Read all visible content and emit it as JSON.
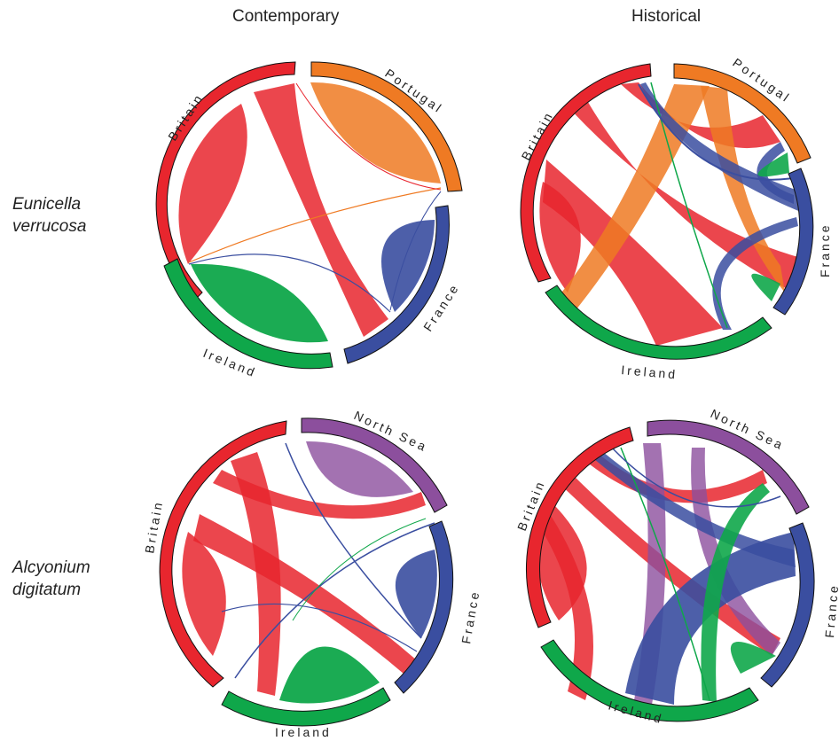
{
  "columns": [
    "Contemporary",
    "Historical"
  ],
  "rows": [
    {
      "species_line1": "Eunicella",
      "species_line2": "verrucosa"
    },
    {
      "species_line1": "Alcyonium",
      "species_line2": "digitatum"
    }
  ],
  "colors": {
    "Britain": "#e8262e",
    "Portugal": "#ef7a23",
    "France": "#3a4ea0",
    "Ireland": "#0fa74a",
    "North Sea": "#8c4f9d"
  },
  "diagrams": [
    {
      "id": "ev-contemporary",
      "segments": [
        {
          "name": "Britain",
          "start": 185,
          "end": 352
        },
        {
          "name": "Portugal",
          "start": 356,
          "end": 72
        },
        {
          "name": "France",
          "start": 80,
          "end": 168
        },
        {
          "name": "Ireland",
          "start": 176,
          "end": 180
        }
      ],
      "labels": [
        "Britain",
        "Portugal",
        "France",
        "Ireland"
      ]
    },
    {
      "id": "ev-historical",
      "segments": [
        {
          "name": "Britain",
          "start": 216,
          "end": 352
        },
        {
          "name": "Portugal",
          "start": 357,
          "end": 56
        },
        {
          "name": "France",
          "start": 62,
          "end": 146
        },
        {
          "name": "Ireland",
          "start": 152,
          "end": 211
        }
      ],
      "labels": [
        "Britain",
        "Portugal",
        "France",
        "Ireland"
      ]
    },
    {
      "id": "ad-contemporary",
      "segments": [
        {
          "name": "Britain",
          "start": 215,
          "end": 356
        },
        {
          "name": "North Sea",
          "start": 2,
          "end": 57
        },
        {
          "name": "France",
          "start": 65,
          "end": 139
        },
        {
          "name": "Ireland",
          "start": 146,
          "end": 209
        }
      ],
      "labels": [
        "Britain",
        "North Sea",
        "France",
        "Ireland"
      ]
    },
    {
      "id": "ad-historical",
      "segments": [
        {
          "name": "Britain",
          "start": 250,
          "end": 352
        },
        {
          "name": "North Sea",
          "start": 358,
          "end": 64
        },
        {
          "name": "France",
          "start": 71,
          "end": 144
        },
        {
          "name": "Ireland",
          "start": 151,
          "end": 243
        }
      ],
      "labels": [
        "Britain",
        "North Sea",
        "France",
        "Ireland"
      ]
    }
  ]
}
